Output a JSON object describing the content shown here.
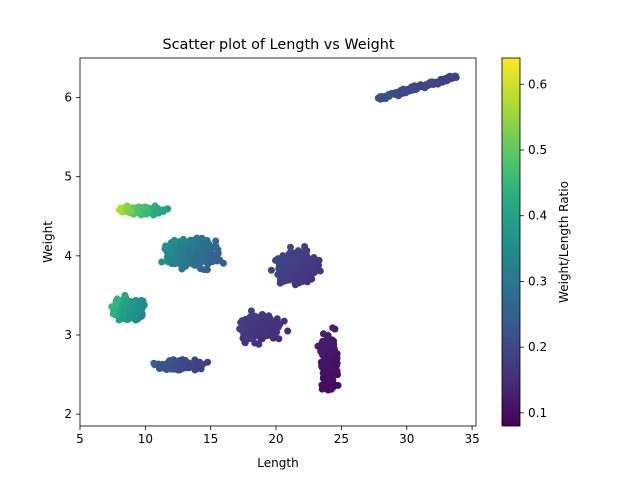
{
  "chart_data": {
    "type": "scatter",
    "title": "Scatter plot of Length vs Weight",
    "xlabel": "Length",
    "ylabel": "Weight",
    "xlim": [
      5,
      35.3
    ],
    "ylim": [
      1.85,
      6.5
    ],
    "xticks": [
      5,
      10,
      15,
      20,
      25,
      30,
      35
    ],
    "yticks": [
      2,
      3,
      4,
      5,
      6
    ],
    "grid": false,
    "color_by": "Weight/Length Ratio",
    "colorbar": {
      "label": "Weight/Length Ratio",
      "range": [
        0.08,
        0.64
      ],
      "ticks": [
        0.1,
        0.2,
        0.3,
        0.4,
        0.5,
        0.6
      ],
      "colormap": "viridis"
    },
    "clusters": [
      {
        "x_range": [
          27.8,
          33.8
        ],
        "y_range": [
          5.98,
          6.27
        ],
        "count": 140,
        "shape": "diagonal"
      },
      {
        "x_range": [
          6.8,
          12.9
        ],
        "y_range": [
          4.48,
          4.68
        ],
        "count": 110,
        "shape": "band"
      },
      {
        "x_range": [
          9.6,
          17.4
        ],
        "y_range": [
          3.7,
          4.35
        ],
        "count": 320,
        "shape": "blob"
      },
      {
        "x_range": [
          6.3,
          11.2
        ],
        "y_range": [
          3.05,
          3.6
        ],
        "count": 200,
        "shape": "blob"
      },
      {
        "x_range": [
          9.6,
          15.6
        ],
        "y_range": [
          2.5,
          2.75
        ],
        "count": 140,
        "shape": "band"
      },
      {
        "x_range": [
          15.8,
          21.8
        ],
        "y_range": [
          2.78,
          3.4
        ],
        "count": 230,
        "shape": "blob"
      },
      {
        "x_range": [
          18.4,
          24.9
        ],
        "y_range": [
          3.45,
          4.25
        ],
        "count": 260,
        "shape": "blob"
      },
      {
        "x_range": [
          22.3,
          25.8
        ],
        "y_range": [
          2.05,
          3.25
        ],
        "count": 300,
        "shape": "column"
      }
    ]
  }
}
